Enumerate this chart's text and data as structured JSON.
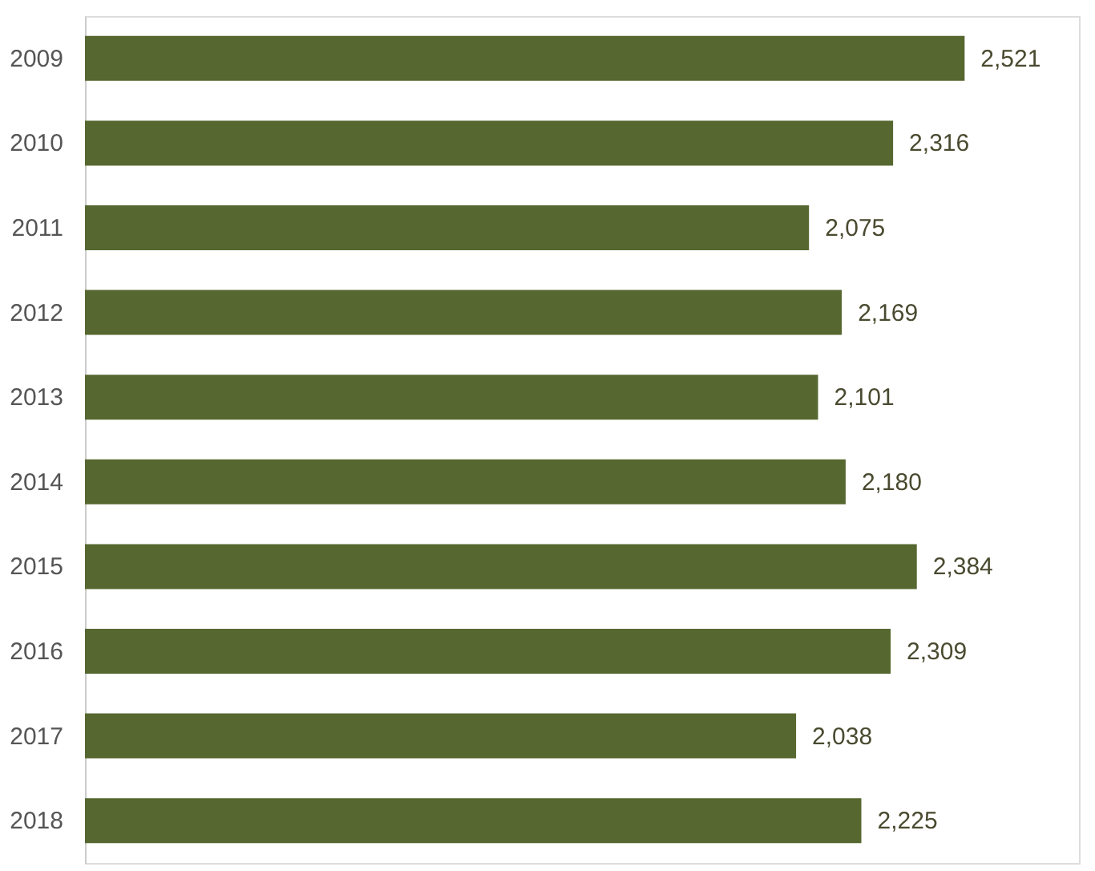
{
  "chart_data": {
    "type": "bar",
    "orientation": "horizontal",
    "categories": [
      "2009",
      "2010",
      "2011",
      "2012",
      "2013",
      "2014",
      "2015",
      "2016",
      "2017",
      "2018"
    ],
    "values": [
      2521,
      2316,
      2075,
      2169,
      2101,
      2180,
      2384,
      2309,
      2038,
      2225
    ],
    "value_labels": [
      "2,521",
      "2,316",
      "2,075",
      "2,169",
      "2,101",
      "2,180",
      "2,384",
      "2,309",
      "2,038",
      "2,225"
    ],
    "color": "#56672f"
  }
}
